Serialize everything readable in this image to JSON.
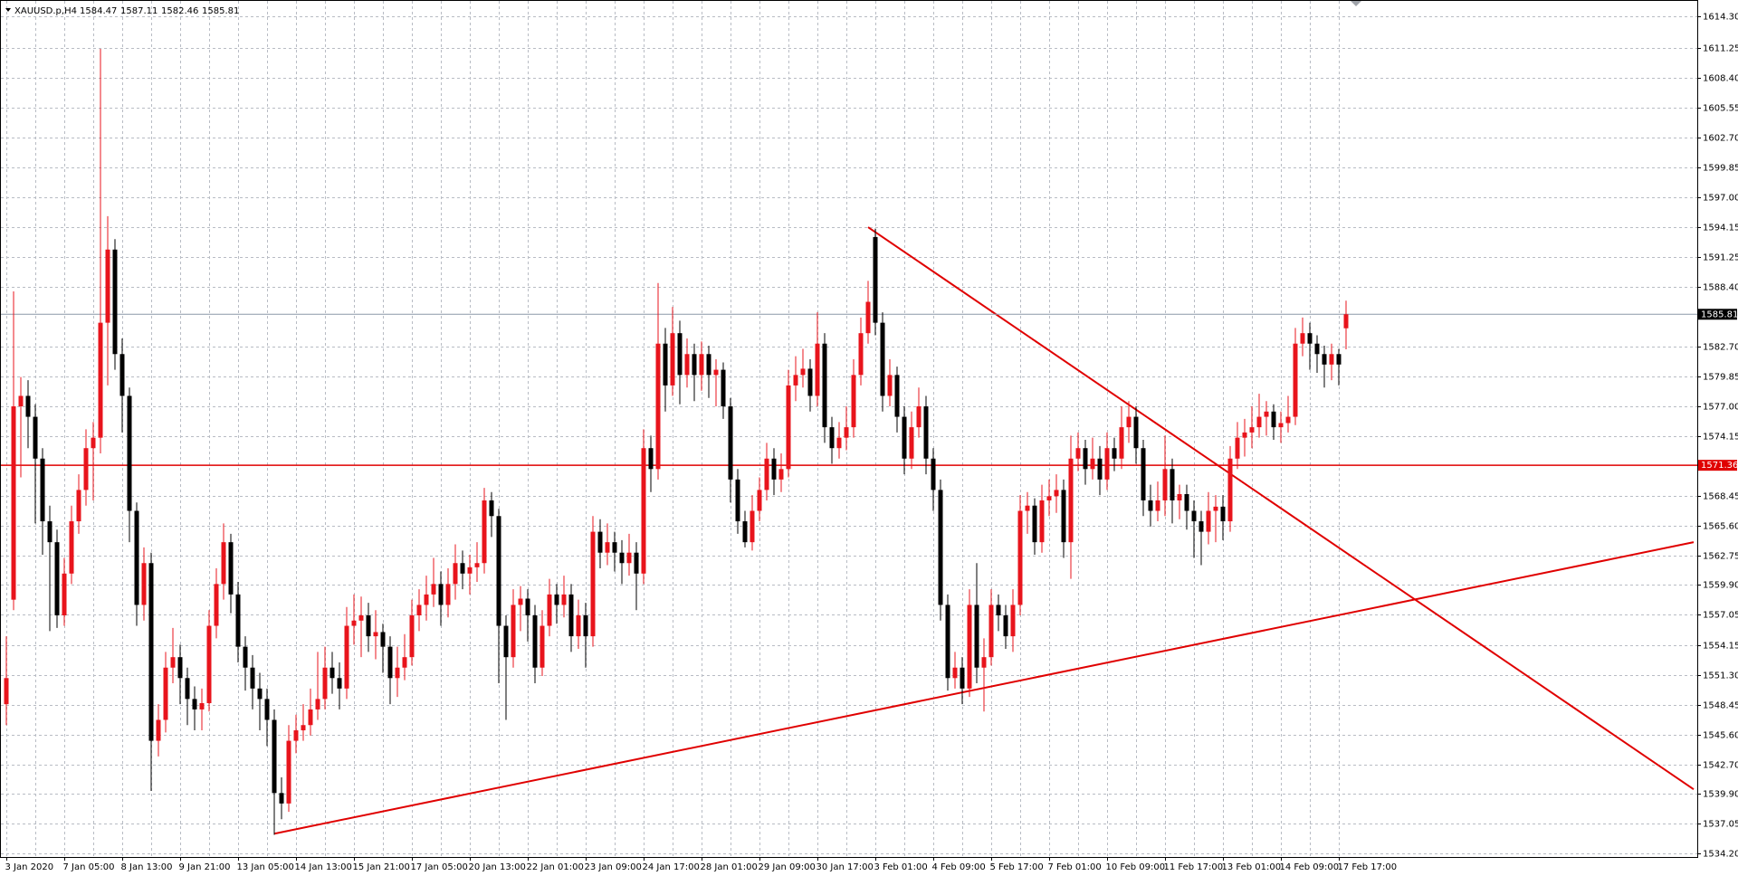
{
  "chart_data": {
    "type": "candlestick",
    "symbol": "XAUUSD.p,H4",
    "bull_color": "#e8141c",
    "bear_color": "#000000",
    "ylim": [
      1533.88,
      1615.36
    ],
    "yticks": [
      {
        "value": 1614.3,
        "label": "1614.30"
      },
      1611.25,
      {
        "value": 1608.4,
        "label": "1608.40"
      },
      1605.55,
      {
        "value": 1602.7,
        "label": "1602.70"
      },
      1599.85,
      {
        "value": 1597,
        "label": "1597.00"
      },
      1594.15,
      1591.25,
      {
        "value": 1588.4,
        "label": "1588.40"
      },
      {
        "value": 1582.7,
        "label": "1582.70"
      },
      1579.85,
      {
        "value": 1577,
        "label": "1577.00"
      },
      1574.15,
      1568.45,
      {
        "value": 1565.6,
        "label": "1565.60"
      },
      1562.75,
      {
        "value": 1559.9,
        "label": "1559.90"
      },
      1557.05,
      1554.15,
      {
        "value": 1551.3,
        "label": "1551.30"
      },
      1548.45,
      {
        "value": 1545.6,
        "label": "1545.60"
      },
      {
        "value": 1542.7,
        "label": "1542.70"
      },
      {
        "value": 1539.9,
        "label": "1539.90"
      },
      1537.05,
      {
        "value": 1534.2,
        "label": "1534.20"
      }
    ],
    "grid": true,
    "levels": [
      {
        "value": 1571.36,
        "color": "#e00000"
      }
    ],
    "trendlines": [
      {
        "start": [
          119,
          1594.14
        ],
        "end": [
          233,
          1540.36
        ],
        "color": "#e00000"
      },
      {
        "start": [
          37,
          1536.11
        ],
        "end": [
          233,
          1564.0
        ],
        "color": "#e00000"
      }
    ],
    "categories": [
      "3 Jan 2020",
      null,
      null,
      null,
      null,
      null,
      null,
      null,
      "7 Jan 05:00",
      null,
      null,
      null,
      null,
      null,
      null,
      null,
      "8 Jan 13:00",
      null,
      null,
      null,
      null,
      null,
      null,
      null,
      "9 Jan 21:00",
      null,
      null,
      null,
      null,
      null,
      null,
      null,
      "13 Jan 05:00",
      null,
      null,
      null,
      null,
      null,
      null,
      null,
      "14 Jan 13:00",
      null,
      null,
      null,
      null,
      null,
      null,
      null,
      "15 Jan 21:00",
      null,
      null,
      null,
      null,
      null,
      null,
      null,
      "17 Jan 05:00",
      null,
      null,
      null,
      null,
      null,
      null,
      null,
      "20 Jan 13:00",
      null,
      null,
      null,
      null,
      null,
      null,
      null,
      "22 Jan 01:00",
      null,
      null,
      null,
      null,
      null,
      null,
      null,
      "23 Jan 09:00",
      null,
      null,
      null,
      null,
      null,
      null,
      null,
      "24 Jan 17:00",
      null,
      null,
      null,
      null,
      null,
      null,
      null,
      "28 Jan 01:00",
      null,
      null,
      null,
      null,
      null,
      null,
      null,
      "29 Jan 09:00",
      null,
      null,
      null,
      null,
      null,
      null,
      null,
      "30 Jan 17:00",
      null,
      null,
      null,
      null,
      null,
      null,
      null,
      "3 Feb 01:00",
      null,
      null,
      null,
      null,
      null,
      null,
      null,
      "4 Feb 09:00",
      null,
      null,
      null,
      null,
      null,
      null,
      null,
      "5 Feb 17:00",
      null,
      null,
      null,
      null,
      null,
      null,
      null,
      "7 Feb 01:00",
      null,
      null,
      null,
      null,
      null,
      null,
      null,
      "10 Feb 09:00",
      null,
      null,
      null,
      null,
      null,
      null,
      null,
      "11 Feb 17:00",
      null,
      null,
      null,
      null,
      null,
      null,
      null,
      "13 Feb 01:00",
      null,
      null,
      null,
      null,
      null,
      null,
      null,
      "14 Feb 09:00",
      null,
      null,
      null,
      null,
      null,
      null,
      null,
      "17 Feb 17:00",
      null
    ],
    "candles": [
      [
        1548.5,
        1555.0,
        1546.5,
        1551.0
      ],
      [
        1558.5,
        1588.0,
        1557.5,
        1577.0
      ],
      [
        1577.0,
        1579.8,
        1570.2,
        1578.0
      ],
      [
        1578.0,
        1579.5,
        1573.0,
        1576.0
      ],
      [
        1576.0,
        1577.2,
        1565.8,
        1572.0
      ],
      [
        1572.0,
        1573.0,
        1562.8,
        1566.0
      ],
      [
        1566.0,
        1567.5,
        1555.5,
        1564.0
      ],
      [
        1564.0,
        1565.2,
        1555.8,
        1557.0
      ],
      [
        1557.0,
        1562.5,
        1556.0,
        1561.0
      ],
      [
        1561.0,
        1567.5,
        1560.0,
        1566.0
      ],
      [
        1566.0,
        1570.5,
        1564.8,
        1569.0
      ],
      [
        1569.0,
        1574.8,
        1567.5,
        1573.0
      ],
      [
        1573.0,
        1575.5,
        1568.0,
        1574.0
      ],
      [
        1574.0,
        1611.2,
        1572.5,
        1585.0
      ],
      [
        1585.0,
        1595.2,
        1579.0,
        1592.0
      ],
      [
        1592.0,
        1593.0,
        1580.5,
        1582.0
      ],
      [
        1582.0,
        1583.5,
        1574.5,
        1578.0
      ],
      [
        1578.0,
        1578.8,
        1564.0,
        1567.0
      ],
      [
        1567.0,
        1567.8,
        1556.0,
        1558.0
      ],
      [
        1558.0,
        1563.5,
        1556.5,
        1562.0
      ],
      [
        1562.0,
        1563.0,
        1540.2,
        1545.0
      ],
      [
        1545.0,
        1548.5,
        1543.5,
        1547.0
      ],
      [
        1547.0,
        1553.5,
        1545.8,
        1552.0
      ],
      [
        1552.0,
        1555.8,
        1550.5,
        1553.0
      ],
      [
        1553.0,
        1554.2,
        1548.5,
        1551.0
      ],
      [
        1551.0,
        1552.0,
        1546.5,
        1549.0
      ],
      [
        1549.0,
        1550.2,
        1546.0,
        1548.0
      ],
      [
        1548.0,
        1550.0,
        1546.0,
        1548.6
      ],
      [
        1548.6,
        1557.5,
        1547.8,
        1556.0
      ],
      [
        1556.0,
        1561.5,
        1554.8,
        1560.0
      ],
      [
        1560.0,
        1565.8,
        1558.5,
        1564.0
      ],
      [
        1564.0,
        1564.8,
        1557.2,
        1559.0
      ],
      [
        1559.0,
        1560.2,
        1552.5,
        1554.0
      ],
      [
        1554.0,
        1555.0,
        1549.8,
        1552.0
      ],
      [
        1552.0,
        1553.2,
        1548.0,
        1550.0
      ],
      [
        1550.0,
        1551.5,
        1546.0,
        1549.0
      ],
      [
        1549.0,
        1550.0,
        1544.5,
        1547.0
      ],
      [
        1547.0,
        1548.0,
        1536.0,
        1540.0
      ],
      [
        1540.0,
        1541.5,
        1537.5,
        1539.0
      ],
      [
        1539.0,
        1546.5,
        1538.2,
        1545.0
      ],
      [
        1545.0,
        1547.5,
        1543.8,
        1546.0
      ],
      [
        1546.0,
        1548.5,
        1545.0,
        1546.5
      ],
      [
        1546.5,
        1550.0,
        1545.5,
        1548.0
      ],
      [
        1548.0,
        1553.5,
        1547.0,
        1549.0
      ],
      [
        1549.0,
        1554.0,
        1548.0,
        1552.0
      ],
      [
        1552.0,
        1553.5,
        1549.5,
        1551.0
      ],
      [
        1551.0,
        1552.5,
        1548.0,
        1550.0
      ],
      [
        1550.0,
        1557.8,
        1549.0,
        1556.0
      ],
      [
        1556.0,
        1559.0,
        1554.2,
        1556.5
      ],
      [
        1556.5,
        1558.8,
        1553.0,
        1557.0
      ],
      [
        1557.0,
        1558.2,
        1553.5,
        1555.0
      ],
      [
        1555.0,
        1557.5,
        1552.8,
        1555.4
      ],
      [
        1555.4,
        1556.2,
        1551.5,
        1554.0
      ],
      [
        1554.0,
        1555.0,
        1548.5,
        1551.0
      ],
      [
        1551.0,
        1554.0,
        1549.2,
        1552.0
      ],
      [
        1552.0,
        1555.2,
        1550.8,
        1553.0
      ],
      [
        1553.0,
        1558.5,
        1552.2,
        1557.0
      ],
      [
        1557.0,
        1559.5,
        1555.5,
        1558.0
      ],
      [
        1558.0,
        1560.8,
        1556.5,
        1559.0
      ],
      [
        1559.0,
        1562.5,
        1557.8,
        1560.0
      ],
      [
        1560.0,
        1561.2,
        1556.0,
        1558.0
      ],
      [
        1558.0,
        1561.5,
        1556.8,
        1560.0
      ],
      [
        1560.0,
        1563.8,
        1558.5,
        1562.0
      ],
      [
        1562.0,
        1563.2,
        1559.5,
        1561.0
      ],
      [
        1561.0,
        1562.8,
        1559.0,
        1561.6
      ],
      [
        1561.6,
        1564.0,
        1560.2,
        1562.0
      ],
      [
        1562.0,
        1569.2,
        1561.0,
        1568.0
      ],
      [
        1568.0,
        1568.8,
        1564.5,
        1566.5
      ],
      [
        1566.5,
        1567.2,
        1550.5,
        1556.0
      ],
      [
        1556.0,
        1557.0,
        1547.0,
        1553.0
      ],
      [
        1553.0,
        1559.5,
        1552.0,
        1558.0
      ],
      [
        1558.0,
        1559.8,
        1555.5,
        1558.6
      ],
      [
        1558.6,
        1559.5,
        1554.5,
        1557.0
      ],
      [
        1557.0,
        1558.0,
        1550.5,
        1552.0
      ],
      [
        1552.0,
        1557.5,
        1551.2,
        1556.0
      ],
      [
        1556.0,
        1560.5,
        1555.0,
        1559.0
      ],
      [
        1559.0,
        1560.0,
        1556.2,
        1558.0
      ],
      [
        1558.0,
        1560.8,
        1556.8,
        1559.0
      ],
      [
        1559.0,
        1560.0,
        1553.5,
        1555.0
      ],
      [
        1555.0,
        1558.5,
        1553.8,
        1557.0
      ],
      [
        1557.0,
        1558.2,
        1552.0,
        1555.0
      ],
      [
        1555.0,
        1566.5,
        1554.0,
        1565.0
      ],
      [
        1565.0,
        1566.2,
        1561.5,
        1563.0
      ],
      [
        1563.0,
        1565.8,
        1561.8,
        1564.0
      ],
      [
        1564.0,
        1565.0,
        1561.2,
        1563.0
      ],
      [
        1563.0,
        1564.2,
        1560.0,
        1562.0
      ],
      [
        1562.0,
        1564.8,
        1560.8,
        1563.0
      ],
      [
        1563.0,
        1564.0,
        1557.5,
        1561.0
      ],
      [
        1561.0,
        1574.8,
        1560.0,
        1573.0
      ],
      [
        1573.0,
        1574.2,
        1568.8,
        1571.0
      ],
      [
        1571.0,
        1588.8,
        1570.0,
        1583.0
      ],
      [
        1583.0,
        1584.5,
        1576.5,
        1579.0
      ],
      [
        1579.0,
        1586.5,
        1578.0,
        1584.0
      ],
      [
        1584.0,
        1585.2,
        1577.2,
        1580.0
      ],
      [
        1580.0,
        1583.5,
        1578.8,
        1582.0
      ],
      [
        1582.0,
        1583.0,
        1577.5,
        1580.0
      ],
      [
        1580.0,
        1583.2,
        1578.5,
        1582.0
      ],
      [
        1582.0,
        1582.8,
        1577.8,
        1580.0
      ],
      [
        1580.0,
        1581.5,
        1577.0,
        1580.5
      ],
      [
        1580.5,
        1581.2,
        1575.8,
        1577.0
      ],
      [
        1577.0,
        1577.8,
        1567.8,
        1570.0
      ],
      [
        1570.0,
        1571.0,
        1564.8,
        1566.0
      ],
      [
        1566.0,
        1567.0,
        1563.5,
        1564.0
      ],
      [
        1564.0,
        1568.5,
        1563.2,
        1567.0
      ],
      [
        1567.0,
        1570.2,
        1566.0,
        1569.0
      ],
      [
        1569.0,
        1573.5,
        1568.0,
        1572.0
      ],
      [
        1572.0,
        1573.0,
        1568.5,
        1570.0
      ],
      [
        1570.0,
        1572.5,
        1568.8,
        1571.0
      ],
      [
        1571.0,
        1580.5,
        1570.2,
        1579.0
      ],
      [
        1579.0,
        1581.8,
        1577.5,
        1580.0
      ],
      [
        1580.0,
        1582.5,
        1578.8,
        1580.6
      ],
      [
        1580.6,
        1581.5,
        1576.5,
        1578.0
      ],
      [
        1578.0,
        1586.0,
        1577.0,
        1583.0
      ],
      [
        1583.0,
        1584.0,
        1573.5,
        1575.0
      ],
      [
        1575.0,
        1576.0,
        1571.5,
        1573.0
      ],
      [
        1573.0,
        1575.5,
        1572.0,
        1574.0
      ],
      [
        1574.0,
        1577.0,
        1572.8,
        1575.0
      ],
      [
        1575.0,
        1581.5,
        1574.0,
        1580.0
      ],
      [
        1580.0,
        1585.5,
        1579.0,
        1584.0
      ],
      [
        1584.0,
        1589.0,
        1583.0,
        1587.0
      ],
      [
        1593.2,
        1594.0,
        1583.8,
        1585.0
      ],
      [
        1585.0,
        1586.0,
        1576.5,
        1578.0
      ],
      [
        1578.0,
        1581.5,
        1577.0,
        1580.0
      ],
      [
        1580.0,
        1580.8,
        1574.5,
        1576.0
      ],
      [
        1576.0,
        1577.0,
        1570.5,
        1572.0
      ],
      [
        1572.0,
        1576.5,
        1571.0,
        1575.0
      ],
      [
        1575.0,
        1578.8,
        1574.0,
        1577.0
      ],
      [
        1577.0,
        1578.0,
        1570.5,
        1572.0
      ],
      [
        1572.0,
        1573.0,
        1567.0,
        1569.0
      ],
      [
        1569.0,
        1570.0,
        1556.5,
        1558.0
      ],
      [
        1558.0,
        1559.0,
        1549.8,
        1551.0
      ],
      [
        1551.0,
        1553.5,
        1550.0,
        1552.0
      ],
      [
        1552.0,
        1553.0,
        1548.5,
        1550.0
      ],
      [
        1550.0,
        1559.5,
        1549.2,
        1558.0
      ],
      [
        1558.0,
        1562.0,
        1550.5,
        1552.0
      ],
      [
        1552.0,
        1554.8,
        1547.8,
        1553.0
      ],
      [
        1553.0,
        1559.5,
        1552.2,
        1558.0
      ],
      [
        1558.0,
        1559.0,
        1555.5,
        1557.0
      ],
      [
        1557.0,
        1558.0,
        1553.8,
        1555.0
      ],
      [
        1555.0,
        1559.5,
        1553.5,
        1558.0
      ],
      [
        1558.0,
        1568.5,
        1557.0,
        1567.0
      ],
      [
        1567.0,
        1568.8,
        1564.8,
        1567.5
      ],
      [
        1567.5,
        1568.2,
        1562.8,
        1564.0
      ],
      [
        1564.0,
        1569.5,
        1563.0,
        1568.0
      ],
      [
        1568.0,
        1570.0,
        1566.5,
        1568.4
      ],
      [
        1568.4,
        1570.5,
        1566.8,
        1569.0
      ],
      [
        1569.0,
        1570.0,
        1562.5,
        1564.0
      ],
      [
        1564.0,
        1574.2,
        1560.5,
        1572.0
      ],
      [
        1572.0,
        1574.5,
        1570.8,
        1573.0
      ],
      [
        1573.0,
        1573.8,
        1569.5,
        1571.0
      ],
      [
        1571.0,
        1574.0,
        1570.0,
        1572.0
      ],
      [
        1572.0,
        1573.2,
        1568.5,
        1570.0
      ],
      [
        1570.0,
        1574.5,
        1569.0,
        1573.0
      ],
      [
        1573.0,
        1574.0,
        1570.8,
        1572.0
      ],
      [
        1572.0,
        1577.0,
        1571.0,
        1575.0
      ],
      [
        1575.0,
        1577.5,
        1573.5,
        1576.0
      ],
      [
        1576.0,
        1577.0,
        1571.5,
        1573.0
      ],
      [
        1573.0,
        1573.8,
        1566.5,
        1568.0
      ],
      [
        1568.0,
        1569.5,
        1565.5,
        1567.0
      ],
      [
        1567.0,
        1569.8,
        1566.0,
        1568.0
      ],
      [
        1568.0,
        1574.2,
        1566.5,
        1571.0
      ],
      [
        1571.0,
        1572.0,
        1565.8,
        1568.0
      ],
      [
        1568.0,
        1569.5,
        1566.2,
        1568.6
      ],
      [
        1568.6,
        1569.5,
        1565.2,
        1567.0
      ],
      [
        1567.0,
        1568.0,
        1562.5,
        1566.0
      ],
      [
        1566.0,
        1567.0,
        1561.8,
        1565.0
      ],
      [
        1565.0,
        1568.8,
        1563.8,
        1567.0
      ],
      [
        1567.0,
        1568.5,
        1564.0,
        1567.4
      ],
      [
        1567.4,
        1568.5,
        1564.2,
        1566.0
      ],
      [
        1566.0,
        1573.2,
        1565.0,
        1572.0
      ],
      [
        1572.0,
        1575.5,
        1571.0,
        1574.0
      ],
      [
        1574.0,
        1575.8,
        1572.2,
        1574.5
      ],
      [
        1574.5,
        1577.0,
        1573.0,
        1575.0
      ],
      [
        1575.0,
        1578.2,
        1574.0,
        1576.0
      ],
      [
        1576.0,
        1577.5,
        1574.2,
        1576.5
      ],
      [
        1576.5,
        1577.2,
        1573.8,
        1575.0
      ],
      [
        1575.0,
        1576.5,
        1573.5,
        1575.4
      ],
      [
        1575.4,
        1578.0,
        1574.5,
        1576.0
      ],
      [
        1576.0,
        1584.5,
        1575.2,
        1583.0
      ],
      [
        1583.0,
        1585.5,
        1581.8,
        1584.0
      ],
      [
        1584.0,
        1585.0,
        1580.5,
        1583.0
      ],
      [
        1583.0,
        1583.8,
        1580.2,
        1582.0
      ],
      [
        1582.0,
        1582.8,
        1578.8,
        1581.0
      ],
      [
        1581.0,
        1583.0,
        1579.5,
        1582.0
      ],
      [
        1582.0,
        1582.5,
        1579.0,
        1581.0
      ],
      [
        1584.47,
        1587.11,
        1582.46,
        1585.81
      ]
    ]
  }
}
